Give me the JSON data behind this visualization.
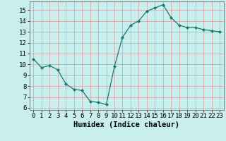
{
  "x": [
    0,
    1,
    2,
    3,
    4,
    5,
    6,
    7,
    8,
    9,
    10,
    11,
    12,
    13,
    14,
    15,
    16,
    17,
    18,
    19,
    20,
    21,
    22,
    23
  ],
  "y": [
    10.5,
    9.7,
    9.9,
    9.5,
    8.2,
    7.7,
    7.6,
    6.6,
    6.5,
    6.3,
    9.8,
    12.5,
    13.6,
    14.0,
    14.9,
    15.2,
    15.5,
    14.3,
    13.6,
    13.4,
    13.4,
    13.2,
    13.1,
    13.0
  ],
  "xlabel": "Humidex (Indice chaleur)",
  "ylim": [
    5.8,
    15.8
  ],
  "yticks": [
    6,
    7,
    8,
    9,
    10,
    11,
    12,
    13,
    14,
    15
  ],
  "xticks": [
    0,
    1,
    2,
    3,
    4,
    5,
    6,
    7,
    8,
    9,
    10,
    11,
    12,
    13,
    14,
    15,
    16,
    17,
    18,
    19,
    20,
    21,
    22,
    23
  ],
  "line_color": "#1a7a6e",
  "marker": "D",
  "marker_size": 2.0,
  "bg_color": "#c8eeee",
  "grid_color": "#d4a0a0",
  "xlabel_fontsize": 7.5,
  "tick_fontsize": 6.5
}
